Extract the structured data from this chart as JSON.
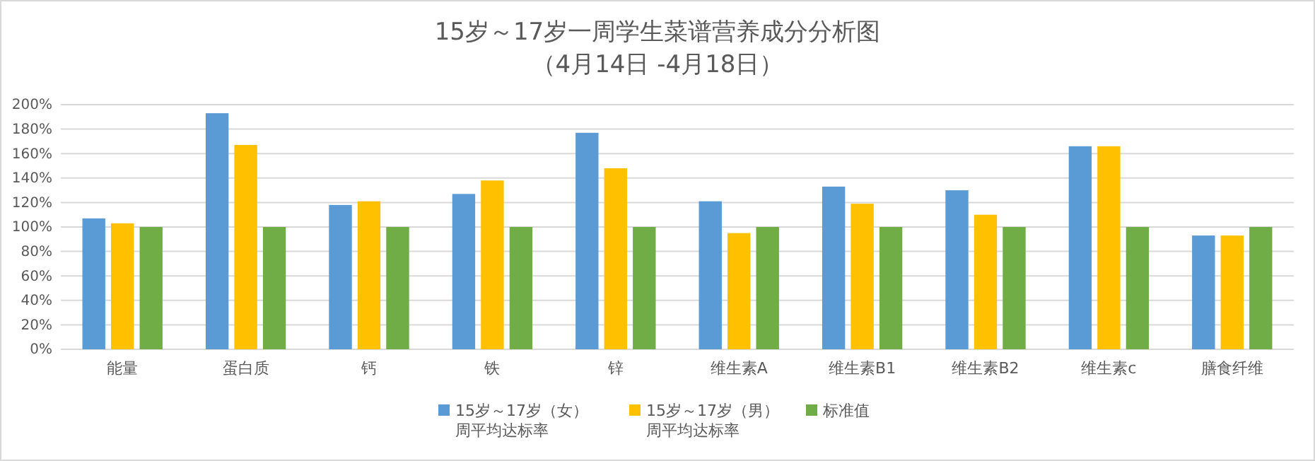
{
  "chart_data": {
    "type": "bar",
    "title": "15岁～17岁一周学生菜谱营养成分分析图",
    "subtitle": "（4月14日 -4月18日）",
    "categories": [
      "能量",
      "蛋白质",
      "钙",
      "铁",
      "锌",
      "维生素A",
      "维生素B1",
      "维生素B2",
      "维生素c",
      "膳食纤维"
    ],
    "series": [
      {
        "name": "15岁～17岁（女）周平均达标率",
        "color": "#5b9bd5",
        "values": [
          107,
          193,
          118,
          127,
          177,
          121,
          133,
          130,
          166,
          93
        ]
      },
      {
        "name": "15岁～17岁（男）周平均达标率",
        "color": "#ffc000",
        "values": [
          103,
          167,
          121,
          138,
          148,
          95,
          119,
          110,
          166,
          93
        ]
      },
      {
        "name": "标准值",
        "color": "#70ad47",
        "values": [
          100,
          100,
          100,
          100,
          100,
          100,
          100,
          100,
          100,
          100
        ]
      }
    ],
    "ylim": [
      0,
      200
    ],
    "yticks": [
      {
        "value": 0,
        "label": "0%"
      },
      {
        "value": 20,
        "label": "20%"
      },
      {
        "value": 40,
        "label": "40%"
      },
      {
        "value": 60,
        "label": "60%"
      },
      {
        "value": 80,
        "label": "80%"
      },
      {
        "value": 100,
        "label": "100%"
      },
      {
        "value": 120,
        "label": "120%"
      },
      {
        "value": 140,
        "label": "140%"
      },
      {
        "value": 160,
        "label": "160%"
      },
      {
        "value": 180,
        "label": "180%"
      },
      {
        "value": 200,
        "label": "200%"
      }
    ],
    "grid": "y",
    "legend": "bottom"
  }
}
